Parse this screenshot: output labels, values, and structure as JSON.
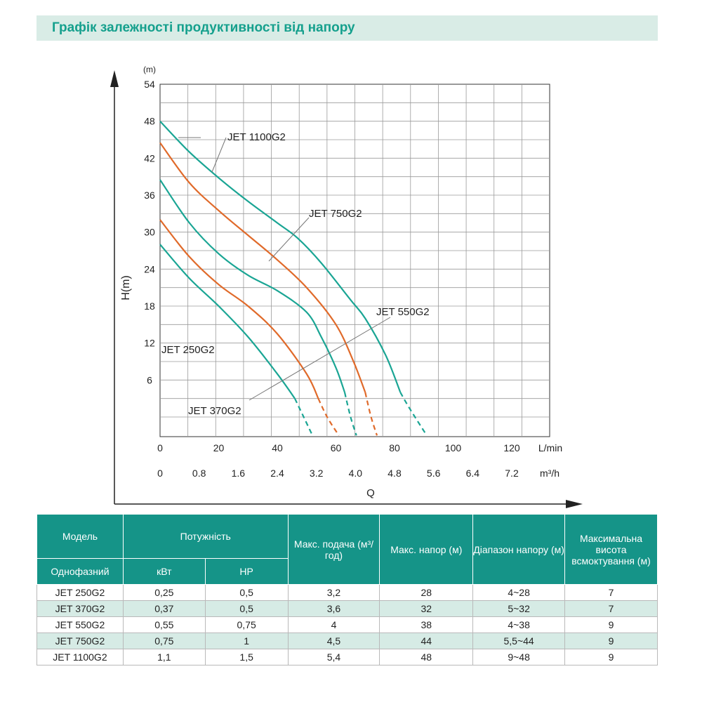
{
  "title": "Графік залежності продуктивності від напору",
  "chart_data": {
    "type": "line",
    "y_unit_label": "(m)",
    "ylabel": "H(m)",
    "xlabel": "Q",
    "ylim": [
      0,
      54
    ],
    "yticks": [
      6,
      12,
      18,
      24,
      30,
      36,
      42,
      48,
      54
    ],
    "xlim_lmin": [
      0,
      130
    ],
    "x_unit_lmin": "L/min",
    "x_ticks_lmin": [
      "0",
      "20",
      "40",
      "60",
      "80",
      "100",
      "120"
    ],
    "x_unit_m3h": "m³/h",
    "x_ticks_m3h": [
      "0",
      "0.8",
      "1.6",
      "2.4",
      "3.2",
      "4.0",
      "4.8",
      "5.6",
      "6.4",
      "7.2"
    ],
    "series": [
      {
        "name": "JET 1100G2",
        "color": "#1aa594",
        "solid": [
          [
            0,
            48
          ],
          [
            10,
            43
          ],
          [
            20,
            38.8
          ],
          [
            30,
            35
          ],
          [
            40,
            31.5
          ],
          [
            47,
            29
          ],
          [
            55,
            25
          ],
          [
            65,
            19
          ],
          [
            70,
            16
          ],
          [
            77,
            10
          ],
          [
            82,
            4
          ]
        ],
        "dashed": [
          [
            82,
            4
          ],
          [
            85,
            1.5
          ],
          [
            91,
            -3
          ]
        ]
      },
      {
        "name": "JET 750G2",
        "color": "#e06a2a",
        "solid": [
          [
            0,
            44.5
          ],
          [
            10,
            38
          ],
          [
            20,
            33.5
          ],
          [
            30,
            29.5
          ],
          [
            40,
            25.5
          ],
          [
            50,
            21
          ],
          [
            60,
            15
          ],
          [
            66,
            9
          ],
          [
            70,
            4
          ]
        ],
        "dashed": [
          [
            70,
            4
          ],
          [
            72,
            0
          ],
          [
            74,
            -3
          ]
        ]
      },
      {
        "name": "JET 550G2",
        "color": "#1aa594",
        "solid": [
          [
            0,
            38.5
          ],
          [
            10,
            31.5
          ],
          [
            20,
            26.5
          ],
          [
            30,
            23
          ],
          [
            40,
            20.5
          ],
          [
            50,
            17
          ],
          [
            55,
            13
          ],
          [
            60,
            8
          ],
          [
            63,
            4
          ]
        ],
        "dashed": [
          [
            63,
            4
          ],
          [
            65,
            0
          ],
          [
            67,
            -3
          ]
        ]
      },
      {
        "name": "JET 370G2",
        "color": "#e06a2a",
        "solid": [
          [
            0,
            32
          ],
          [
            10,
            26
          ],
          [
            20,
            21.5
          ],
          [
            30,
            18
          ],
          [
            40,
            13.5
          ],
          [
            50,
            7
          ],
          [
            54,
            3
          ]
        ],
        "dashed": [
          [
            54,
            3
          ],
          [
            57,
            0
          ],
          [
            61,
            -3
          ]
        ]
      },
      {
        "name": "JET 250G2",
        "color": "#1aa594",
        "solid": [
          [
            0,
            28
          ],
          [
            10,
            22.5
          ],
          [
            20,
            18
          ],
          [
            30,
            13
          ],
          [
            40,
            7
          ],
          [
            46,
            3
          ]
        ],
        "dashed": [
          [
            46,
            3
          ],
          [
            49,
            0
          ],
          [
            52,
            -3
          ]
        ]
      }
    ],
    "annotations": [
      "JET 1100G2",
      "JET 750G2",
      "JET 550G2",
      "JET 250G2",
      "JET 370G2"
    ]
  },
  "table": {
    "headers": {
      "model": "Модель",
      "power": "Потужність",
      "max_flow": "Макс. подача (м³/год)",
      "max_head": "Макс. напор (м)",
      "head_range": "Діапазон напору (м)",
      "max_suction": "Максимальна висота всмоктування (м)",
      "single_phase": "Однофазний",
      "kw": "кВт",
      "hp": "HP"
    },
    "rows": [
      {
        "model": "JET 250G2",
        "kw": "0,25",
        "hp": "0,5",
        "flow": "3,2",
        "head": "28",
        "range": "4~28",
        "suction": "7"
      },
      {
        "model": "JET 370G2",
        "kw": "0,37",
        "hp": "0,5",
        "flow": "3,6",
        "head": "32",
        "range": "5~32",
        "suction": "7"
      },
      {
        "model": "JET 550G2",
        "kw": "0,55",
        "hp": "0,75",
        "flow": "4",
        "head": "38",
        "range": "4~38",
        "suction": "9"
      },
      {
        "model": "JET 750G2",
        "kw": "0,75",
        "hp": "1",
        "flow": "4,5",
        "head": "44",
        "range": "5,5~44",
        "suction": "9"
      },
      {
        "model": "JET 1100G2",
        "kw": "1,1",
        "hp": "1,5",
        "flow": "5,4",
        "head": "48",
        "range": "9~48",
        "suction": "9"
      }
    ]
  }
}
